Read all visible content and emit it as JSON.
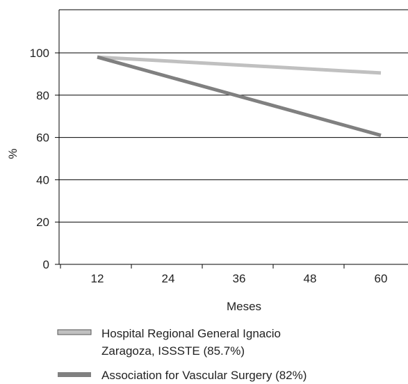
{
  "chart_data": {
    "type": "line",
    "xlabel": "Meses",
    "ylabel": "%",
    "x": [
      12,
      24,
      36,
      48,
      60
    ],
    "x_tick_labels": [
      "12",
      "24",
      "36",
      "48",
      "60"
    ],
    "ylim": [
      0,
      100
    ],
    "y_ticks": [
      0,
      20,
      40,
      60,
      80,
      100
    ],
    "y_tick_labels": [
      "0",
      "20",
      "40",
      "60",
      "80",
      "100"
    ],
    "grid": "horizontal",
    "legend_position": "bottom",
    "series": [
      {
        "name_lines": [
          "Hospital Regional General Ignacio",
          "Zaragoza, ISSSTE (85.7%)"
        ],
        "color": "#c0c0c0",
        "points": [
          [
            12,
            98
          ],
          [
            60,
            90.5
          ]
        ]
      },
      {
        "name_lines": [
          "Association for Vascular Surgery (82%)"
        ],
        "color": "#808080",
        "points": [
          [
            12,
            98
          ],
          [
            60,
            61
          ]
        ]
      }
    ]
  }
}
